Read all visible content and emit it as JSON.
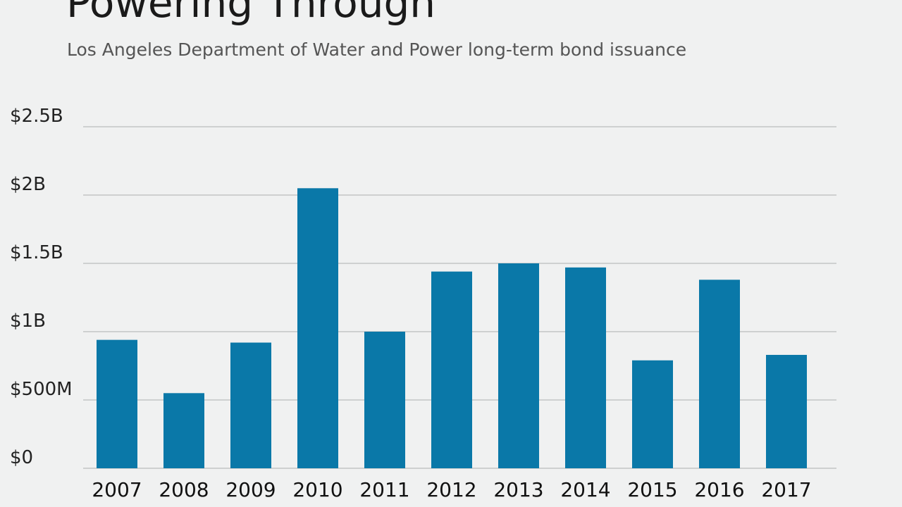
{
  "chart_data": {
    "type": "bar",
    "title": "Powering Through",
    "subtitle": "Los Angeles Department of Water and Power long-term bond issuance",
    "categories": [
      "2007",
      "2008",
      "2009",
      "2010",
      "2011",
      "2012",
      "2013",
      "2014",
      "2015",
      "2016",
      "2017"
    ],
    "values": [
      0.94,
      0.55,
      0.92,
      2.05,
      1.0,
      1.44,
      1.5,
      1.47,
      0.79,
      1.38,
      0.83
    ],
    "unit": "billions USD",
    "ylim": [
      0,
      2.5
    ],
    "yticks": [
      {
        "value": 0,
        "label": "$0"
      },
      {
        "value": 0.5,
        "label": "$500M"
      },
      {
        "value": 1,
        "label": "$1B"
      },
      {
        "value": 1.5,
        "label": "$1.5B"
      },
      {
        "value": 2,
        "label": "$2B"
      },
      {
        "value": 2.5,
        "label": "$2.5B"
      }
    ],
    "xlabel": "",
    "ylabel": "",
    "grid": true,
    "bar_color": "#0a78a8",
    "grid_color": "#b9bcbd",
    "background_color": "#f0f1f1"
  }
}
